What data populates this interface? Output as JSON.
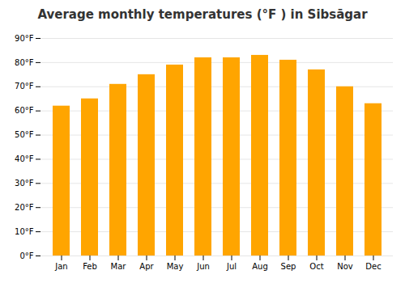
{
  "chart_data": {
    "type": "bar",
    "title": "Average monthly temperatures (°F ) in Sibsāgar",
    "categories": [
      "Jan",
      "Feb",
      "Mar",
      "Apr",
      "May",
      "Jun",
      "Jul",
      "Aug",
      "Sep",
      "Oct",
      "Nov",
      "Dec"
    ],
    "values": [
      62,
      65,
      71,
      75,
      79,
      82,
      82,
      83,
      81,
      77,
      70,
      63
    ],
    "color": "#FFA500",
    "ylim": [
      0,
      90
    ],
    "yticks": [
      {
        "value": 0,
        "label": "0°F"
      },
      {
        "value": 10,
        "label": "10°F"
      },
      {
        "value": 20,
        "label": "20°F"
      },
      {
        "value": 30,
        "label": "30°F"
      },
      {
        "value": 40,
        "label": "40°F"
      },
      {
        "value": 50,
        "label": "50°F"
      },
      {
        "value": 60,
        "label": "60°F"
      },
      {
        "value": 70,
        "label": "70°F"
      },
      {
        "value": 80,
        "label": "80°F"
      },
      {
        "value": 90,
        "label": "90°F"
      }
    ],
    "grid": true
  }
}
